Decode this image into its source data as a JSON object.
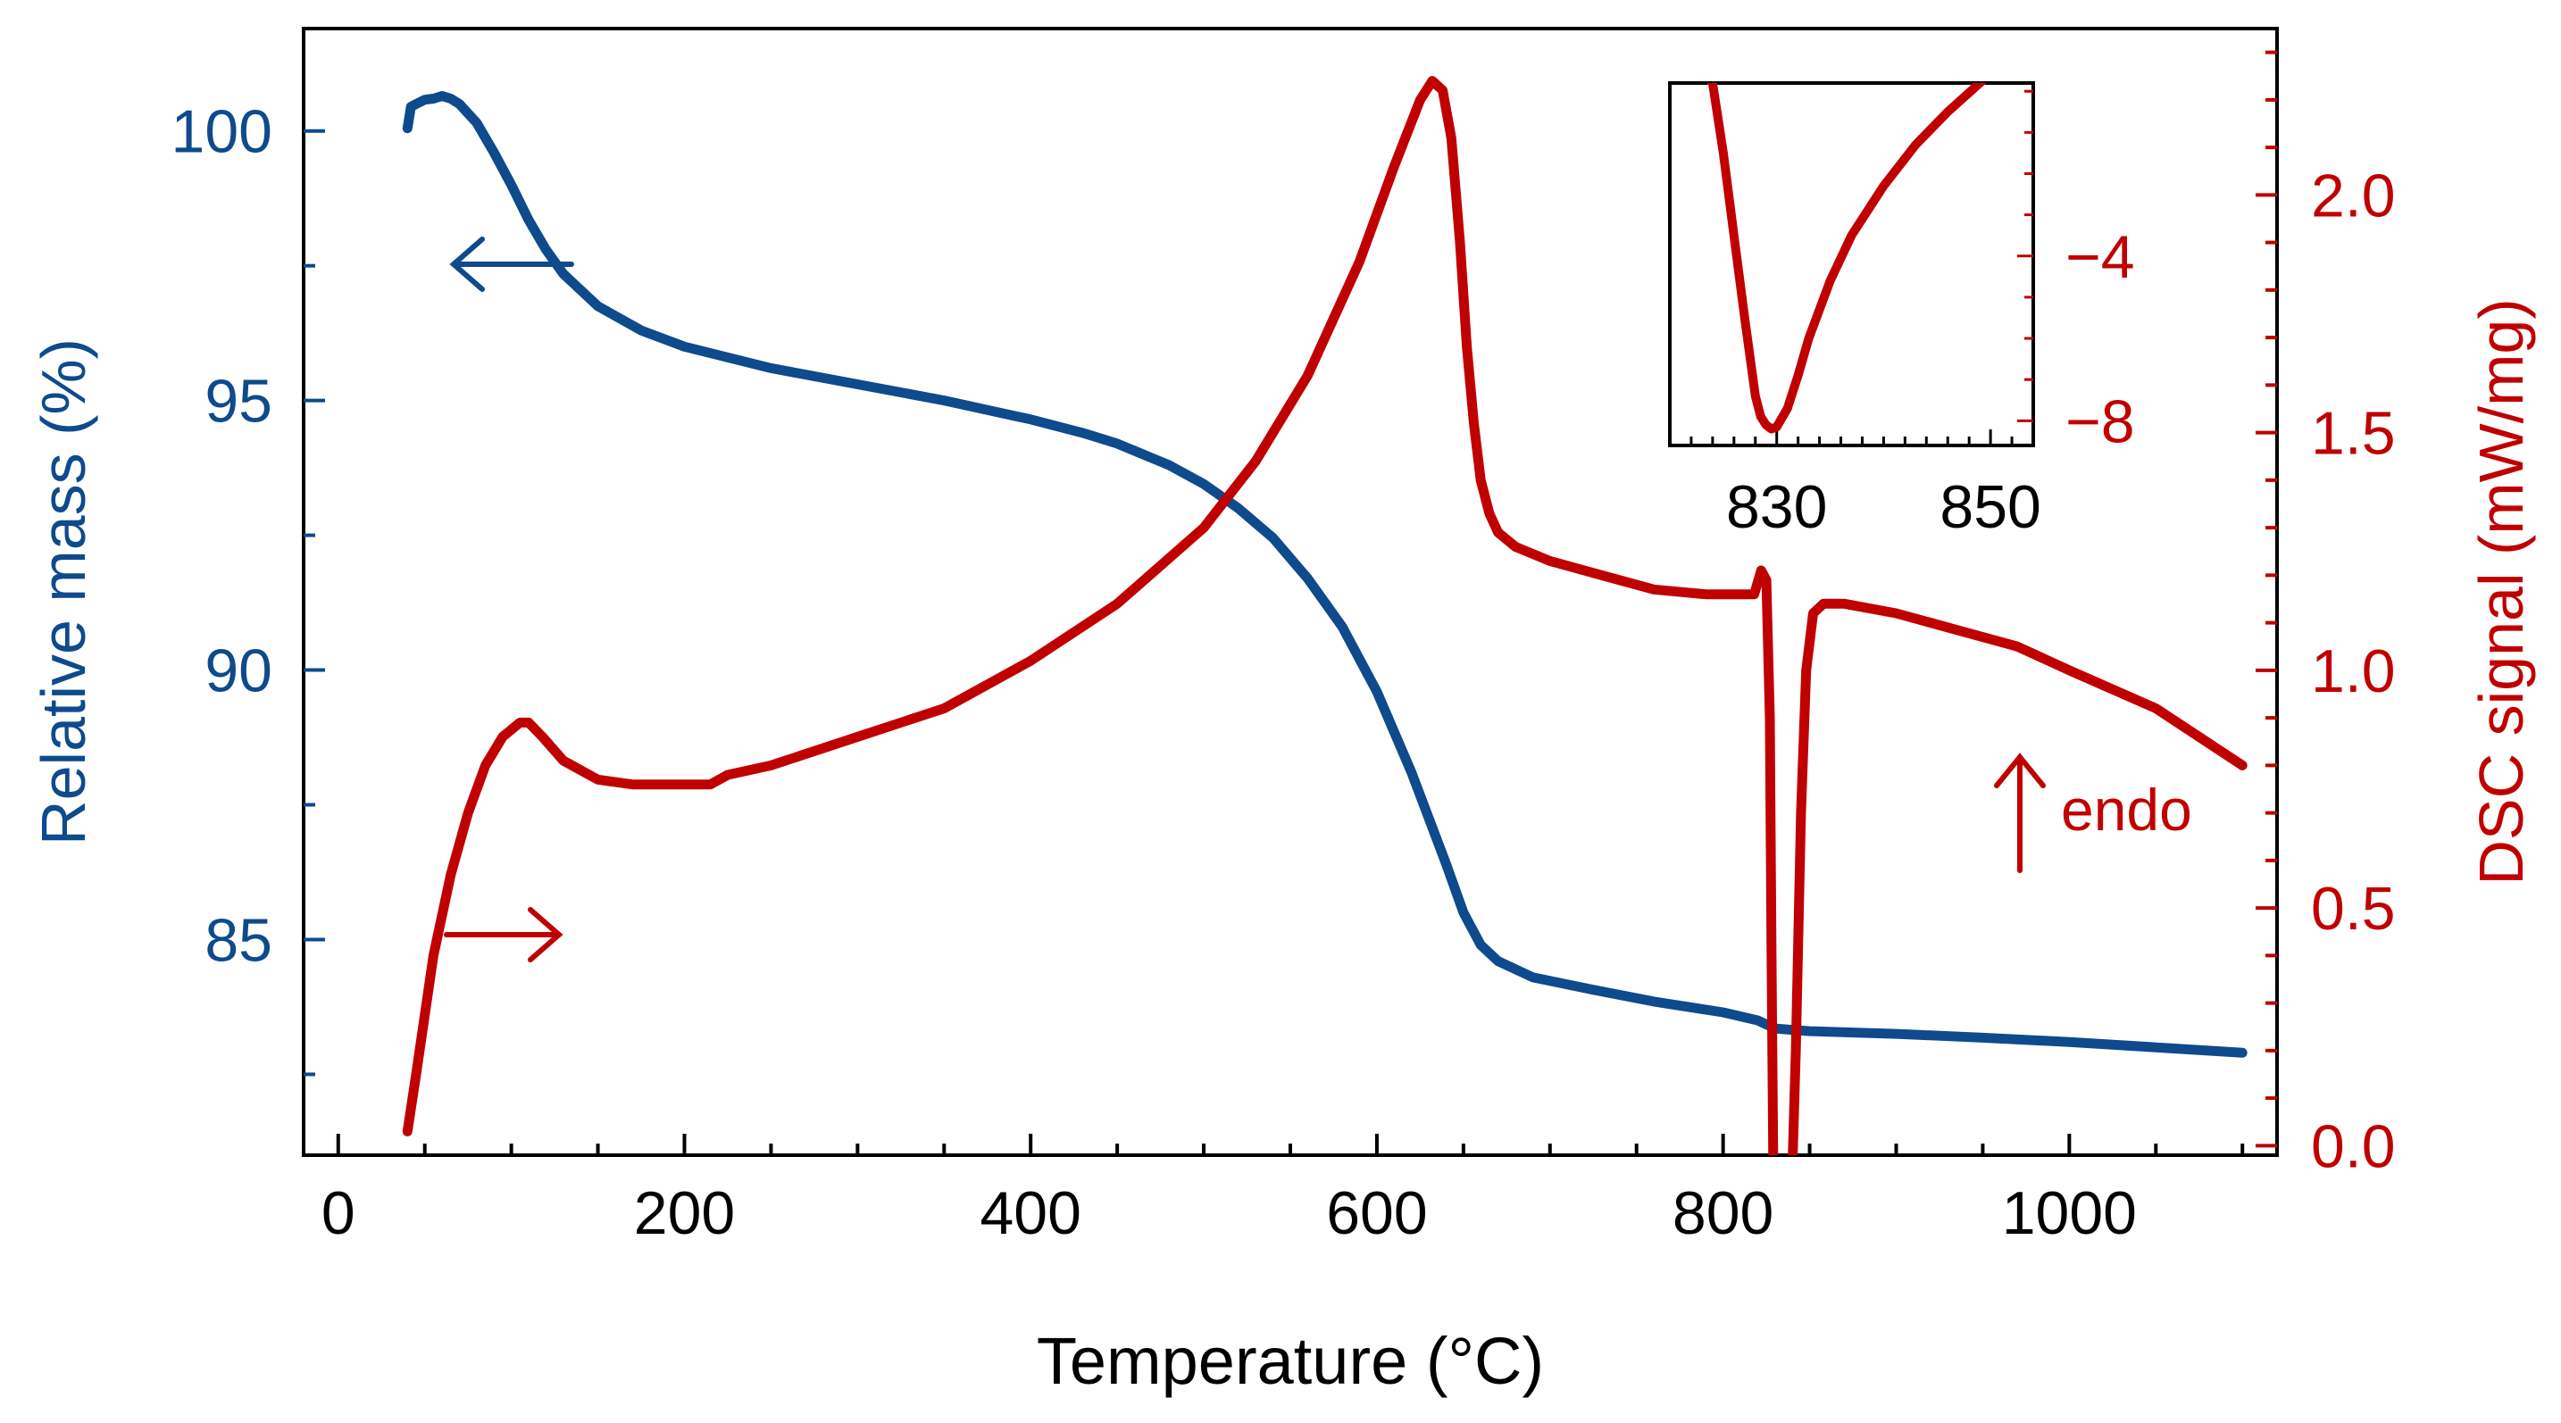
{
  "chart_data": {
    "type": "line",
    "title": "",
    "colors": {
      "mass": "#0e4a8c",
      "dsc": "#c00000",
      "axis": "#000000"
    },
    "x_axis": {
      "label": "Temperature (°C)",
      "range": [
        -20,
        1120
      ],
      "ticks": [
        0,
        200,
        400,
        600,
        800,
        1000
      ],
      "tick_labels": [
        "0",
        "200",
        "400",
        "600",
        "800",
        "1000"
      ],
      "minor_step": 50
    },
    "y_left": {
      "label": "Relative mass (%)",
      "range": [
        81.0,
        101.9
      ],
      "ticks": [
        85,
        90,
        95,
        100
      ],
      "tick_labels": [
        "85",
        "90",
        "95",
        "100"
      ],
      "minor_step": 2.5
    },
    "y_right": {
      "label": "DSC signal (mW/mg)",
      "range": [
        -0.02,
        2.35
      ],
      "ticks": [
        0.0,
        0.5,
        1.0,
        1.5,
        2.0
      ],
      "tick_labels": [
        "0.0",
        "0.5",
        "1.0",
        "1.5",
        "2.0"
      ],
      "minor_step": 0.1
    },
    "series": [
      {
        "name": "Relative mass",
        "axis": "left",
        "x": [
          40,
          42,
          45,
          50,
          55,
          60,
          65,
          70,
          80,
          90,
          100,
          110,
          120,
          130,
          150,
          175,
          200,
          250,
          300,
          350,
          400,
          430,
          450,
          480,
          500,
          520,
          540,
          560,
          580,
          600,
          620,
          640,
          650,
          660,
          670,
          690,
          720,
          760,
          800,
          820,
          830,
          850,
          900,
          950,
          1000,
          1050,
          1100
        ],
        "values": [
          100.05,
          100.45,
          100.5,
          100.58,
          100.6,
          100.65,
          100.6,
          100.5,
          100.15,
          99.6,
          99.0,
          98.35,
          97.8,
          97.35,
          96.75,
          96.3,
          96.0,
          95.6,
          95.3,
          95.0,
          94.65,
          94.4,
          94.2,
          93.8,
          93.45,
          93.0,
          92.45,
          91.7,
          90.8,
          89.6,
          88.1,
          86.4,
          85.5,
          84.9,
          84.6,
          84.3,
          84.1,
          83.85,
          83.65,
          83.5,
          83.35,
          83.3,
          83.25,
          83.18,
          83.1,
          83.0,
          82.9
        ]
      },
      {
        "name": "DSC signal",
        "axis": "right",
        "x": [
          40,
          45,
          55,
          65,
          75,
          85,
          95,
          105,
          110,
          118,
          130,
          150,
          170,
          180,
          200,
          215,
          225,
          250,
          300,
          350,
          400,
          450,
          500,
          530,
          560,
          590,
          610,
          625,
          632,
          638,
          643,
          648,
          652,
          656,
          660,
          665,
          670,
          680,
          700,
          730,
          760,
          790,
          810,
          818,
          822,
          825,
          827,
          828,
          829,
          830,
          835,
          840,
          842,
          845,
          848,
          852,
          858,
          870,
          900,
          940,
          970,
          1000,
          1050,
          1100
        ],
        "values": [
          0.03,
          0.15,
          0.4,
          0.57,
          0.7,
          0.8,
          0.86,
          0.89,
          0.89,
          0.86,
          0.81,
          0.77,
          0.76,
          0.76,
          0.76,
          0.76,
          0.78,
          0.8,
          0.86,
          0.92,
          1.02,
          1.14,
          1.3,
          1.44,
          1.62,
          1.86,
          2.06,
          2.2,
          2.24,
          2.22,
          2.12,
          1.9,
          1.68,
          1.52,
          1.4,
          1.33,
          1.29,
          1.26,
          1.23,
          1.2,
          1.17,
          1.16,
          1.16,
          1.16,
          1.21,
          1.19,
          0.9,
          0.4,
          -0.05,
          -0.05,
          -0.05,
          -0.05,
          0.2,
          0.7,
          1.0,
          1.12,
          1.14,
          1.14,
          1.12,
          1.08,
          1.05,
          1.0,
          0.92,
          0.8
        ]
      }
    ],
    "annotations": [
      {
        "name": "mass-axis-arrow",
        "direction": "left",
        "series": "Relative mass"
      },
      {
        "name": "dsc-axis-arrow",
        "direction": "right",
        "series": "DSC signal"
      },
      {
        "name": "endo-indicator",
        "direction": "up",
        "text": "endo"
      }
    ],
    "inset": {
      "series": "DSC signal",
      "x_range": [
        820,
        854
      ],
      "y_range": [
        -8.6,
        0.2
      ],
      "x_ticks": [
        830,
        850
      ],
      "x_tick_labels": [
        "830",
        "850"
      ],
      "y_ticks": [
        -4,
        -8
      ],
      "y_tick_labels": [
        "−4",
        "−8"
      ],
      "x_minor_step": 2,
      "y_minor_step": 1,
      "x": [
        820,
        824,
        825,
        826,
        827,
        828,
        828.5,
        829,
        829.5,
        830,
        831,
        832,
        833,
        835,
        837,
        840,
        843,
        846,
        849,
        852
      ],
      "values": [
        1.2,
        0.2,
        -1.5,
        -3.5,
        -5.5,
        -7.4,
        -7.9,
        -8.1,
        -8.2,
        -8.15,
        -7.7,
        -6.9,
        -6.0,
        -4.6,
        -3.5,
        -2.3,
        -1.3,
        -0.5,
        0.2,
        0.9
      ]
    }
  }
}
